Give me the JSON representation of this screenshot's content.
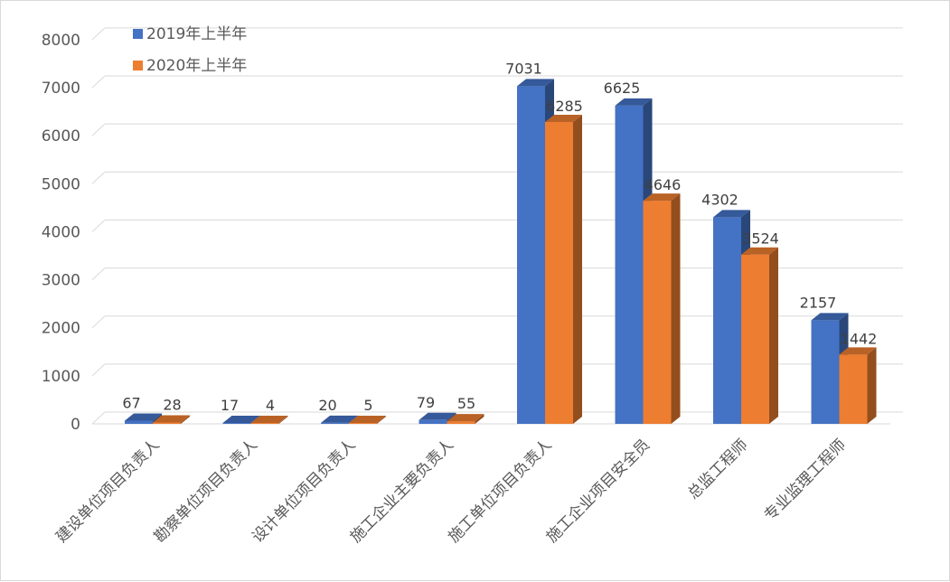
{
  "chart_data": {
    "type": "bar",
    "title": "",
    "xlabel": "",
    "ylabel": "",
    "ylim": [
      0,
      8000
    ],
    "yticks": [
      0,
      1000,
      2000,
      3000,
      4000,
      5000,
      6000,
      7000,
      8000
    ],
    "grid": true,
    "legend_position": "top-left",
    "style": "3d-clustered-column",
    "categories": [
      "建设单位项目负责人",
      "勘察单位项目负责人",
      "设计单位项目负责人",
      "施工企业主要负责人",
      "施工单位项目负责人",
      "施工企业项目安全员",
      "总监工程师",
      "专业监理工程师"
    ],
    "series": [
      {
        "name": "2019年上半年",
        "color": "#4472c4",
        "values": [
          67,
          17,
          20,
          79,
          7031,
          6625,
          4302,
          2157
        ]
      },
      {
        "name": "2020年上半年",
        "color": "#ed7d31",
        "values": [
          28,
          4,
          5,
          55,
          6285,
          4646,
          3524,
          1442
        ]
      }
    ]
  }
}
